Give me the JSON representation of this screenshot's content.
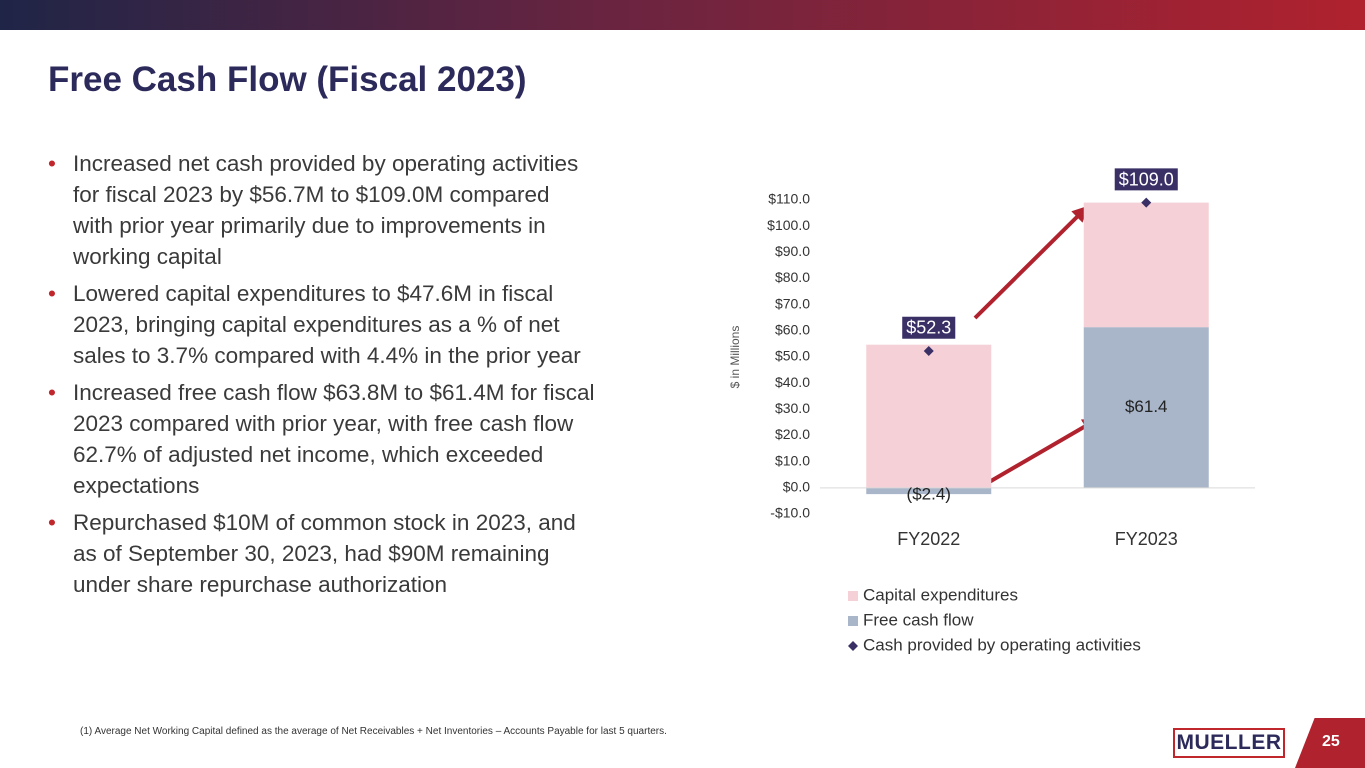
{
  "title": "Free Cash Flow (Fiscal 2023)",
  "bullets": [
    [
      "Increased net cash provided by operating activities",
      "for fiscal 2023 by $56.7M to $109.0M compared",
      "with prior year primarily due to improvements in",
      "working capital"
    ],
    [
      "Lowered capital expenditures to $47.6M in fiscal",
      "2023, bringing capital expenditures as a % of net",
      "sales to 3.7% compared with 4.4% in the prior year"
    ],
    [
      "Increased free cash flow $63.8M to $61.4M for fiscal",
      "2023 compared with prior year, with free cash flow",
      "62.7% of adjusted net income, which exceeded",
      "expectations"
    ],
    [
      "Repurchased $10M of common stock in 2023, and",
      "as of September 30, 2023, had $90M remaining",
      "under share repurchase authorization"
    ]
  ],
  "footnote": "(1)  Average Net Working Capital defined as the average of Net Receivables + Net Inventories – Accounts Payable for last 5 quarters.",
  "logo": "MUELLER",
  "page_number": "25",
  "chart_data": {
    "type": "bar",
    "ylabel": "$ in Millions",
    "categories": [
      "FY2022",
      "FY2023"
    ],
    "series": [
      {
        "name": "Capital expenditures",
        "color": "#f5d0d6",
        "values": [
          54.7,
          47.6
        ]
      },
      {
        "name": "Free cash flow",
        "color": "#a9b5c9",
        "values": [
          -2.4,
          61.4
        ],
        "value_labels": [
          "($2.4)",
          "$61.4"
        ]
      },
      {
        "name": "Cash provided by operating activities",
        "color": "#3a3066",
        "style": "marker",
        "values": [
          52.3,
          109.0
        ],
        "value_labels": [
          "$52.3",
          "$109.0"
        ]
      }
    ],
    "ylim": [
      -10,
      110
    ],
    "yticks": [
      {
        "value": -10,
        "label": "-$10.0"
      },
      {
        "value": 0,
        "label": "$0.0"
      },
      {
        "value": 10,
        "label": "$10.0"
      },
      {
        "value": 20,
        "label": "$20.0"
      },
      {
        "value": 30,
        "label": "$30.0"
      },
      {
        "value": 40,
        "label": "$40.0"
      },
      {
        "value": 50,
        "label": "$50.0"
      },
      {
        "value": 60,
        "label": "$60.0"
      },
      {
        "value": 70,
        "label": "$70.0"
      },
      {
        "value": 80,
        "label": "$80.0"
      },
      {
        "value": 90,
        "label": "$90.0"
      },
      {
        "value": 100,
        "label": "$100.0"
      },
      {
        "value": 110,
        "label": "$110.0"
      }
    ],
    "legend": "bottom"
  }
}
